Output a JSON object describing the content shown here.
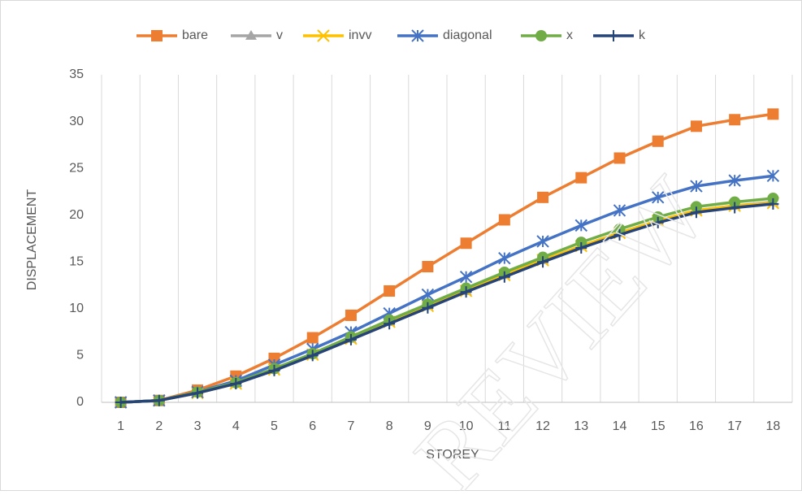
{
  "chart_data": {
    "type": "line",
    "x_label": "STOREY",
    "y_label": "DISPLACEMENT",
    "watermark": "REVIEW",
    "categories": [
      "1",
      "2",
      "3",
      "4",
      "5",
      "6",
      "7",
      "8",
      "9",
      "10",
      "11",
      "12",
      "13",
      "14",
      "15",
      "16",
      "17",
      "18"
    ],
    "series": [
      {
        "name": "bare",
        "color": "#ED7D31",
        "marker": "square",
        "values": [
          0,
          0.2,
          1.3,
          2.8,
          4.7,
          6.9,
          9.3,
          11.9,
          14.5,
          17,
          19.5,
          21.9,
          24,
          26.1,
          27.9,
          29.5,
          30.2,
          30.8
        ]
      },
      {
        "name": "v",
        "color": "#A5A5A5",
        "marker": "triangle",
        "values": [
          0,
          0.2,
          1,
          2,
          3.5,
          5.1,
          6.8,
          8.6,
          10.3,
          11.9,
          13.6,
          15.2,
          16.7,
          18.1,
          19.4,
          20.5,
          21,
          21.4
        ]
      },
      {
        "name": "invv",
        "color": "#FFC000",
        "marker": "x",
        "values": [
          0,
          0.2,
          1,
          2,
          3.5,
          5.1,
          6.8,
          8.6,
          10.3,
          11.9,
          13.6,
          15.2,
          16.7,
          18.1,
          19.4,
          20.5,
          21,
          21.3
        ]
      },
      {
        "name": "diagonal",
        "color": "#4472C4",
        "marker": "asterisk",
        "values": [
          0,
          0.2,
          1.1,
          2.3,
          4,
          5.7,
          7.5,
          9.5,
          11.5,
          13.4,
          15.4,
          17.2,
          18.9,
          20.5,
          21.9,
          23.1,
          23.7,
          24.2
        ]
      },
      {
        "name": "x",
        "color": "#70AD47",
        "marker": "circle",
        "values": [
          0,
          0.2,
          1.1,
          2.1,
          3.6,
          5.2,
          7,
          8.8,
          10.5,
          12.2,
          13.9,
          15.5,
          17.1,
          18.5,
          19.8,
          20.9,
          21.4,
          21.8
        ]
      },
      {
        "name": "k",
        "color": "#264478",
        "marker": "plus",
        "values": [
          0,
          0.2,
          1,
          2,
          3.4,
          5,
          6.7,
          8.4,
          10.1,
          11.8,
          13.4,
          15,
          16.5,
          17.9,
          19.2,
          20.3,
          20.8,
          21.2
        ]
      }
    ],
    "ylim": [
      0,
      35
    ],
    "yticks": [
      0,
      5,
      10,
      15,
      20,
      25,
      30,
      35
    ],
    "grid": true,
    "legend": "top"
  }
}
